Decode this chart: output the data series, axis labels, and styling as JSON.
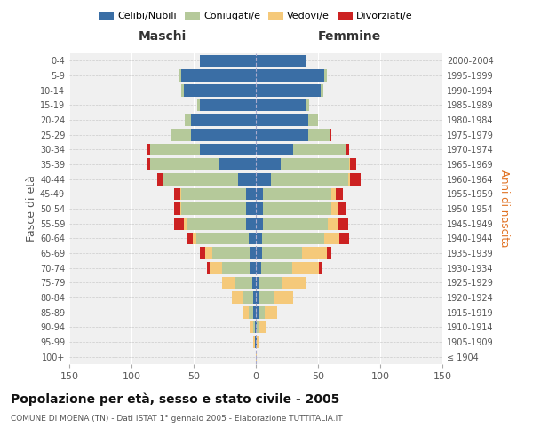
{
  "age_groups": [
    "100+",
    "95-99",
    "90-94",
    "85-89",
    "80-84",
    "75-79",
    "70-74",
    "65-69",
    "60-64",
    "55-59",
    "50-54",
    "45-49",
    "40-44",
    "35-39",
    "30-34",
    "25-29",
    "20-24",
    "15-19",
    "10-14",
    "5-9",
    "0-4"
  ],
  "birth_years": [
    "≤ 1904",
    "1905-1909",
    "1910-1914",
    "1915-1919",
    "1920-1924",
    "1925-1929",
    "1930-1934",
    "1935-1939",
    "1940-1944",
    "1945-1949",
    "1950-1954",
    "1955-1959",
    "1960-1964",
    "1965-1969",
    "1970-1974",
    "1975-1979",
    "1980-1984",
    "1985-1989",
    "1990-1994",
    "1995-1999",
    "2000-2004"
  ],
  "colors": {
    "celibe": "#3a6ea5",
    "coniugato": "#b5c99a",
    "vedovo": "#f5c97a",
    "divorziato": "#cc2222"
  },
  "maschi": {
    "celibe": [
      0,
      1,
      1,
      2,
      2,
      3,
      5,
      5,
      6,
      8,
      8,
      8,
      14,
      30,
      45,
      52,
      52,
      45,
      58,
      60,
      45
    ],
    "coniugato": [
      0,
      0,
      1,
      4,
      9,
      14,
      22,
      30,
      42,
      48,
      52,
      52,
      60,
      55,
      40,
      16,
      5,
      2,
      2,
      2,
      0
    ],
    "vedovo": [
      0,
      1,
      3,
      5,
      8,
      10,
      10,
      6,
      3,
      2,
      1,
      1,
      0,
      0,
      0,
      0,
      0,
      0,
      0,
      0,
      0
    ],
    "divorziato": [
      0,
      0,
      0,
      0,
      0,
      0,
      2,
      4,
      5,
      8,
      5,
      5,
      5,
      2,
      2,
      0,
      0,
      0,
      0,
      0,
      0
    ]
  },
  "femmine": {
    "nubile": [
      0,
      1,
      1,
      2,
      2,
      3,
      4,
      5,
      5,
      6,
      6,
      6,
      12,
      20,
      30,
      42,
      42,
      40,
      52,
      55,
      40
    ],
    "coniugata": [
      0,
      0,
      2,
      5,
      12,
      18,
      25,
      32,
      50,
      52,
      55,
      55,
      62,
      55,
      42,
      18,
      8,
      3,
      2,
      2,
      0
    ],
    "vedova": [
      1,
      2,
      5,
      10,
      16,
      20,
      22,
      20,
      12,
      8,
      5,
      3,
      2,
      1,
      0,
      0,
      0,
      0,
      0,
      0,
      0
    ],
    "divorziata": [
      0,
      0,
      0,
      0,
      0,
      0,
      2,
      4,
      8,
      8,
      6,
      6,
      8,
      5,
      3,
      1,
      0,
      0,
      0,
      0,
      0
    ]
  },
  "xlim": 150,
  "title": "Popolazione per età, sesso e stato civile - 2005",
  "subtitle": "COMUNE DI MOENA (TN) - Dati ISTAT 1° gennaio 2005 - Elaborazione TUTTITALIA.IT",
  "ylabel_left": "Fasce di età",
  "ylabel_right": "Anni di nascita",
  "header_left": "Maschi",
  "header_right": "Femmine",
  "legend_labels": [
    "Celibi/Nubili",
    "Coniugati/e",
    "Vedovi/e",
    "Divorziati/e"
  ],
  "background": "#f0f0f0"
}
